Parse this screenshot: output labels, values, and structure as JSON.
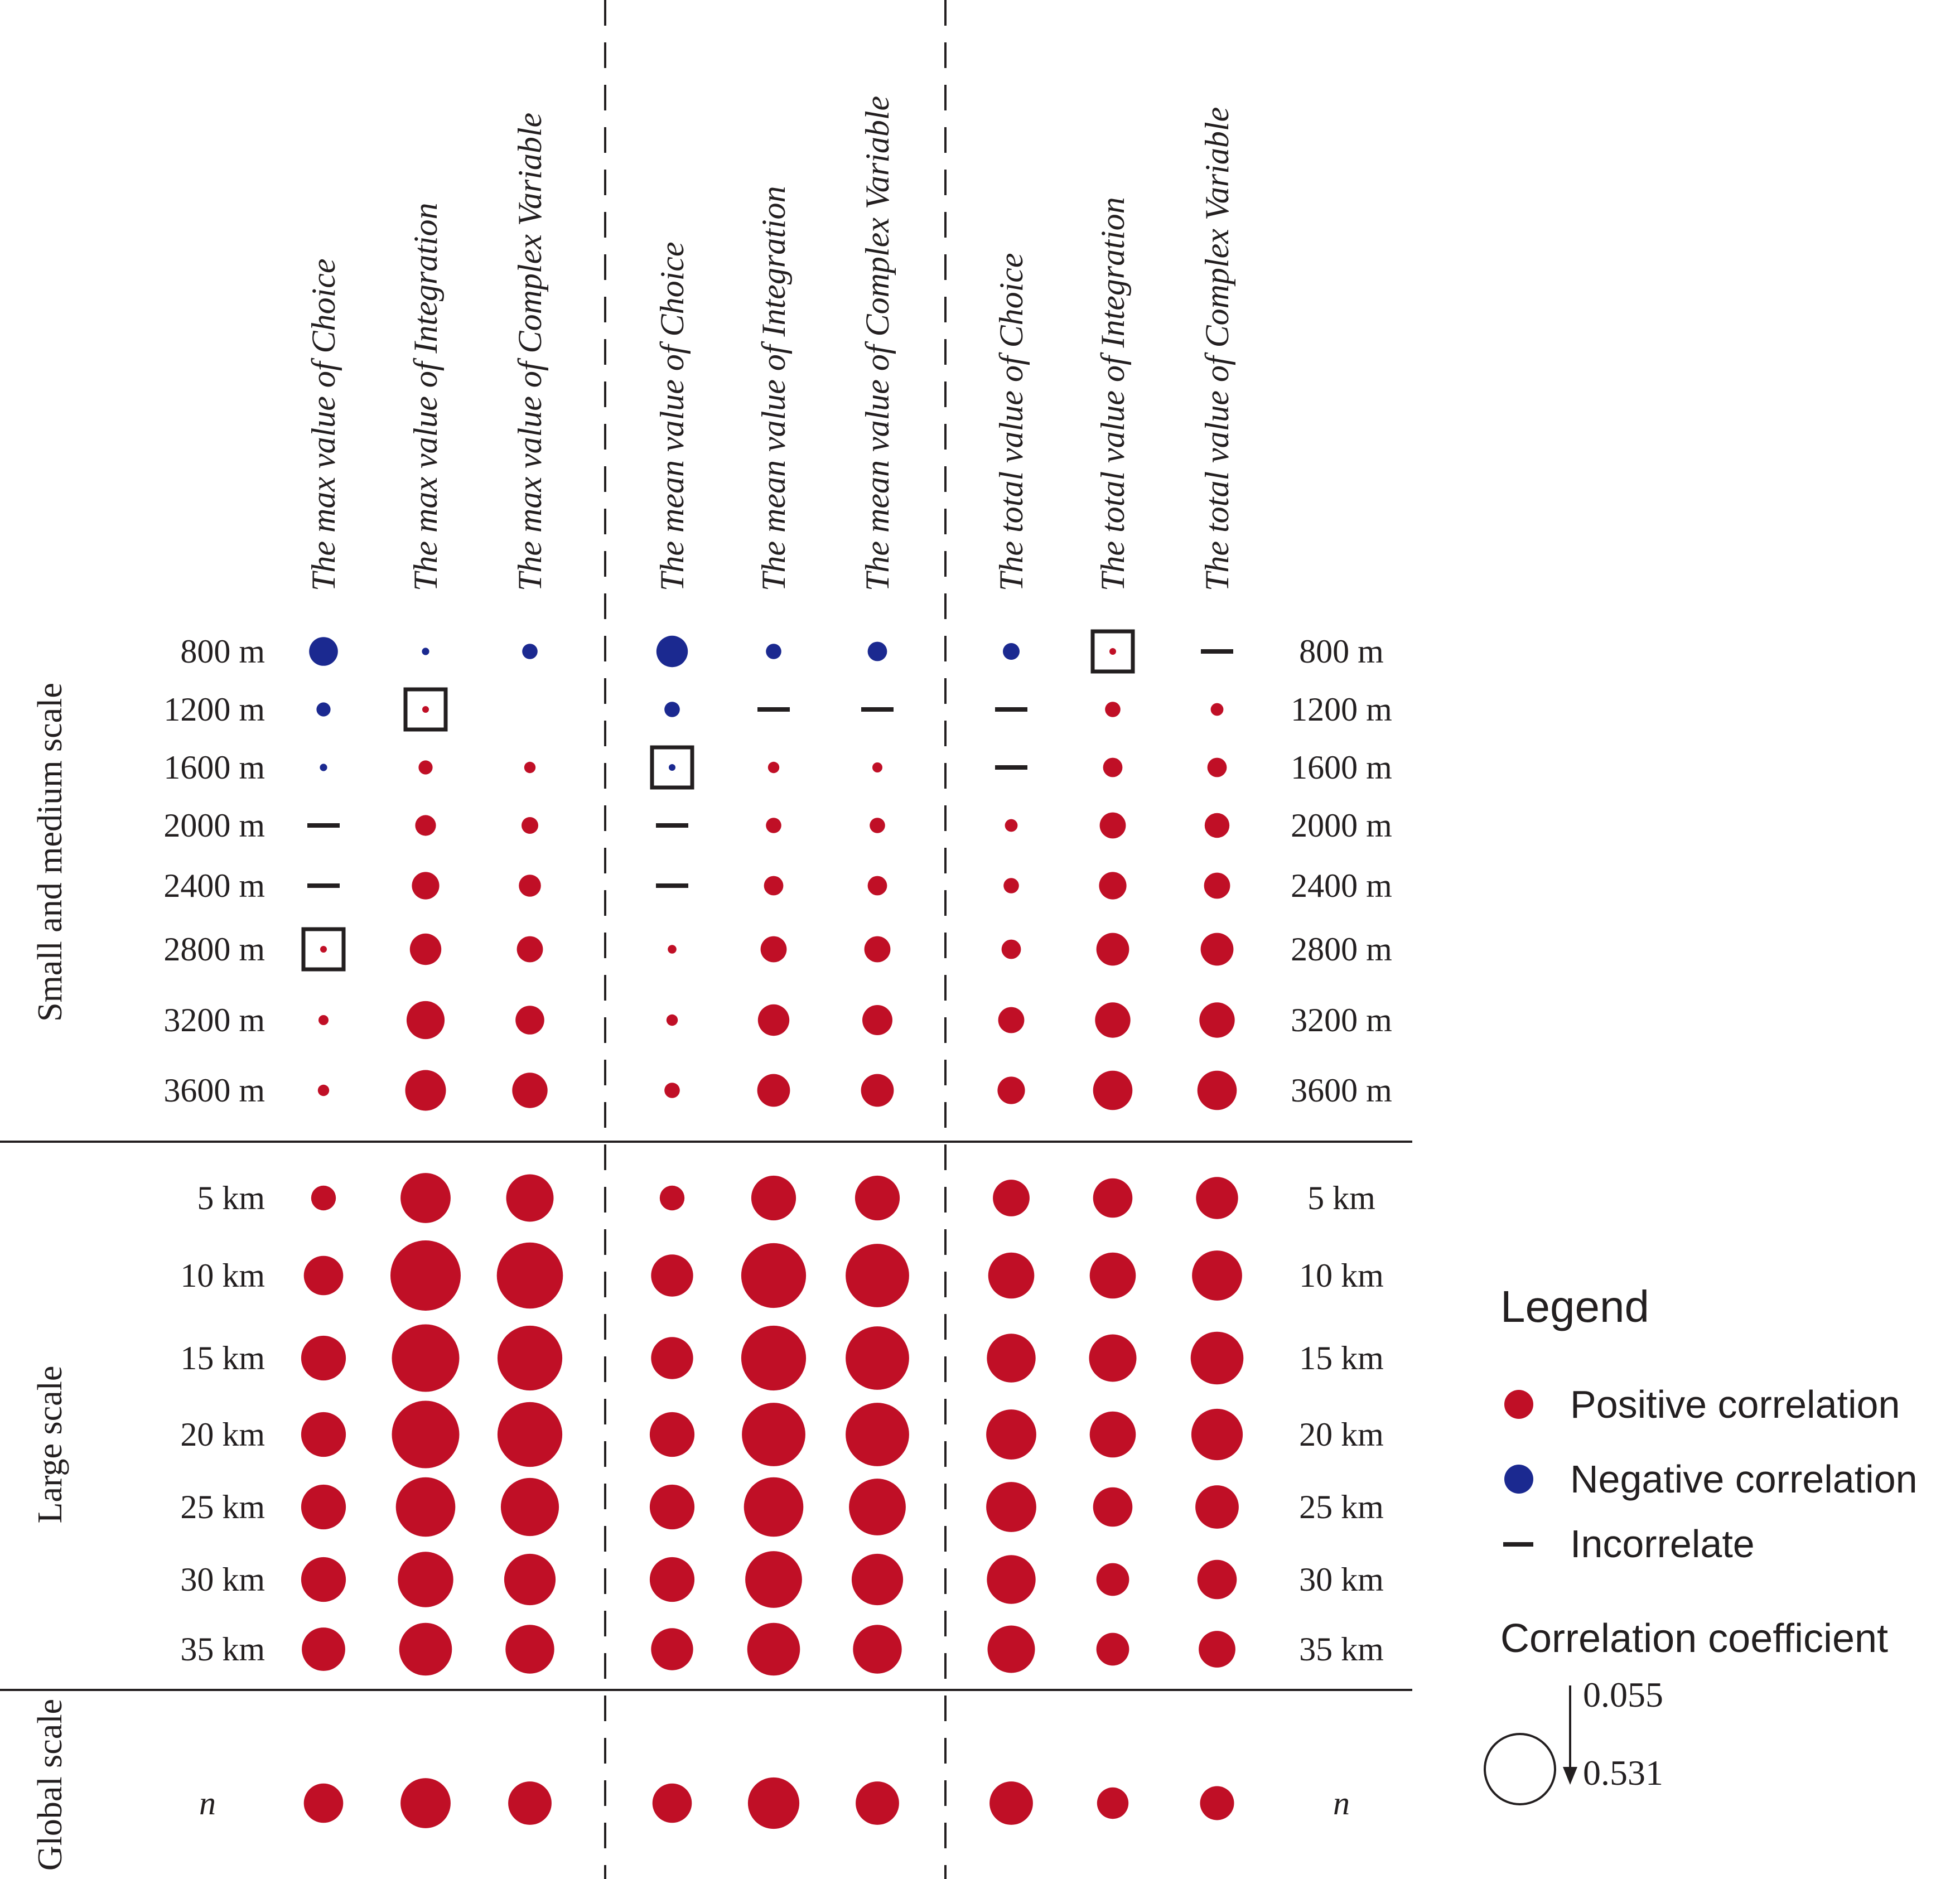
{
  "colors": {
    "positive": "#c00f26",
    "negative": "#1b2990",
    "neutral": "#231f20"
  },
  "chart_data": {
    "type": "bubble-matrix",
    "columns": [
      "The max value of Choice",
      "The max value of Integration",
      "The max value of Complex Variable",
      "The mean value of Choice",
      "The mean value of Integration",
      "The mean value of Complex Variable",
      "The total value of Choice",
      "The total value of Integration",
      "The total value of Complex Variable"
    ],
    "column_groups": [
      [
        "The max value of Choice",
        "The max value of Integration",
        "The max value of Complex Variable"
      ],
      [
        "The mean value of Choice",
        "The mean value of Integration",
        "The mean value of Complex Variable"
      ],
      [
        "The total value of Choice",
        "The total value of Integration",
        "The total value of Complex Variable"
      ]
    ],
    "row_groups": [
      "Small and medium scale",
      "Large scale",
      "Global scale"
    ],
    "rows": [
      {
        "label": "800 m",
        "group": 0,
        "cells": [
          {
            "s": "neg",
            "v": 0.22
          },
          {
            "s": "neg",
            "v": 0.06
          },
          {
            "s": "neg",
            "v": 0.12
          },
          {
            "s": "neg",
            "v": 0.24
          },
          {
            "s": "neg",
            "v": 0.12
          },
          {
            "s": "neg",
            "v": 0.15
          },
          {
            "s": "neg",
            "v": 0.13
          },
          {
            "s": "pos",
            "v": 0.055,
            "boxed": true
          },
          {
            "s": "none"
          }
        ]
      },
      {
        "label": "1200 m",
        "group": 0,
        "cells": [
          {
            "s": "neg",
            "v": 0.11
          },
          {
            "s": "pos",
            "v": 0.055,
            "boxed": true
          },
          {
            "s": "blank"
          },
          {
            "s": "neg",
            "v": 0.12
          },
          {
            "s": "none"
          },
          {
            "s": "none"
          },
          {
            "s": "none"
          },
          {
            "s": "pos",
            "v": 0.12
          },
          {
            "s": "pos",
            "v": 0.1
          }
        ]
      },
      {
        "label": "1600 m",
        "group": 0,
        "cells": [
          {
            "s": "neg",
            "v": 0.06
          },
          {
            "s": "pos",
            "v": 0.11
          },
          {
            "s": "pos",
            "v": 0.09
          },
          {
            "s": "neg",
            "v": 0.055,
            "boxed": true
          },
          {
            "s": "pos",
            "v": 0.09
          },
          {
            "s": "pos",
            "v": 0.08
          },
          {
            "s": "none"
          },
          {
            "s": "pos",
            "v": 0.15
          },
          {
            "s": "pos",
            "v": 0.15
          }
        ]
      },
      {
        "label": "2000 m",
        "group": 0,
        "cells": [
          {
            "s": "none"
          },
          {
            "s": "pos",
            "v": 0.16
          },
          {
            "s": "pos",
            "v": 0.13
          },
          {
            "s": "none"
          },
          {
            "s": "pos",
            "v": 0.12
          },
          {
            "s": "pos",
            "v": 0.12
          },
          {
            "s": "pos",
            "v": 0.1
          },
          {
            "s": "pos",
            "v": 0.2
          },
          {
            "s": "pos",
            "v": 0.19
          }
        ]
      },
      {
        "label": "2400 m",
        "group": 0,
        "cells": [
          {
            "s": "none"
          },
          {
            "s": "pos",
            "v": 0.21
          },
          {
            "s": "pos",
            "v": 0.17
          },
          {
            "s": "none"
          },
          {
            "s": "pos",
            "v": 0.15
          },
          {
            "s": "pos",
            "v": 0.15
          },
          {
            "s": "pos",
            "v": 0.12
          },
          {
            "s": "pos",
            "v": 0.21
          },
          {
            "s": "pos",
            "v": 0.2
          }
        ]
      },
      {
        "label": "2800 m",
        "group": 0,
        "cells": [
          {
            "s": "pos",
            "v": 0.055,
            "boxed": true
          },
          {
            "s": "pos",
            "v": 0.24
          },
          {
            "s": "pos",
            "v": 0.2
          },
          {
            "s": "pos",
            "v": 0.07
          },
          {
            "s": "pos",
            "v": 0.2
          },
          {
            "s": "pos",
            "v": 0.2
          },
          {
            "s": "pos",
            "v": 0.15
          },
          {
            "s": "pos",
            "v": 0.25
          },
          {
            "s": "pos",
            "v": 0.25
          }
        ]
      },
      {
        "label": "3200 m",
        "group": 0,
        "cells": [
          {
            "s": "pos",
            "v": 0.08
          },
          {
            "s": "pos",
            "v": 0.29
          },
          {
            "s": "pos",
            "v": 0.22
          },
          {
            "s": "pos",
            "v": 0.09
          },
          {
            "s": "pos",
            "v": 0.24
          },
          {
            "s": "pos",
            "v": 0.23
          },
          {
            "s": "pos",
            "v": 0.2
          },
          {
            "s": "pos",
            "v": 0.27
          },
          {
            "s": "pos",
            "v": 0.27
          }
        ]
      },
      {
        "label": "3600 m",
        "group": 0,
        "cells": [
          {
            "s": "pos",
            "v": 0.09
          },
          {
            "s": "pos",
            "v": 0.31
          },
          {
            "s": "pos",
            "v": 0.27
          },
          {
            "s": "pos",
            "v": 0.12
          },
          {
            "s": "pos",
            "v": 0.25
          },
          {
            "s": "pos",
            "v": 0.25
          },
          {
            "s": "pos",
            "v": 0.21
          },
          {
            "s": "pos",
            "v": 0.3
          },
          {
            "s": "pos",
            "v": 0.3
          }
        ]
      },
      {
        "label": "5 km",
        "group": 1,
        "cells": [
          {
            "s": "pos",
            "v": 0.19
          },
          {
            "s": "pos",
            "v": 0.38
          },
          {
            "s": "pos",
            "v": 0.36
          },
          {
            "s": "pos",
            "v": 0.19
          },
          {
            "s": "pos",
            "v": 0.34
          },
          {
            "s": "pos",
            "v": 0.34
          },
          {
            "s": "pos",
            "v": 0.28
          },
          {
            "s": "pos",
            "v": 0.3
          },
          {
            "s": "pos",
            "v": 0.32
          }
        ]
      },
      {
        "label": "10 km",
        "group": 1,
        "cells": [
          {
            "s": "pos",
            "v": 0.3
          },
          {
            "s": "pos",
            "v": 0.531
          },
          {
            "s": "pos",
            "v": 0.5
          },
          {
            "s": "pos",
            "v": 0.32
          },
          {
            "s": "pos",
            "v": 0.49
          },
          {
            "s": "pos",
            "v": 0.48
          },
          {
            "s": "pos",
            "v": 0.35
          },
          {
            "s": "pos",
            "v": 0.35
          },
          {
            "s": "pos",
            "v": 0.38
          }
        ]
      },
      {
        "label": "15 km",
        "group": 1,
        "cells": [
          {
            "s": "pos",
            "v": 0.34
          },
          {
            "s": "pos",
            "v": 0.51
          },
          {
            "s": "pos",
            "v": 0.49
          },
          {
            "s": "pos",
            "v": 0.32
          },
          {
            "s": "pos",
            "v": 0.49
          },
          {
            "s": "pos",
            "v": 0.48
          },
          {
            "s": "pos",
            "v": 0.37
          },
          {
            "s": "pos",
            "v": 0.36
          },
          {
            "s": "pos",
            "v": 0.4
          }
        ]
      },
      {
        "label": "20 km",
        "group": 1,
        "cells": [
          {
            "s": "pos",
            "v": 0.34
          },
          {
            "s": "pos",
            "v": 0.51
          },
          {
            "s": "pos",
            "v": 0.49
          },
          {
            "s": "pos",
            "v": 0.34
          },
          {
            "s": "pos",
            "v": 0.48
          },
          {
            "s": "pos",
            "v": 0.48
          },
          {
            "s": "pos",
            "v": 0.38
          },
          {
            "s": "pos",
            "v": 0.35
          },
          {
            "s": "pos",
            "v": 0.39
          }
        ]
      },
      {
        "label": "25 km",
        "group": 1,
        "cells": [
          {
            "s": "pos",
            "v": 0.34
          },
          {
            "s": "pos",
            "v": 0.45
          },
          {
            "s": "pos",
            "v": 0.44
          },
          {
            "s": "pos",
            "v": 0.34
          },
          {
            "s": "pos",
            "v": 0.45
          },
          {
            "s": "pos",
            "v": 0.43
          },
          {
            "s": "pos",
            "v": 0.38
          },
          {
            "s": "pos",
            "v": 0.3
          },
          {
            "s": "pos",
            "v": 0.33
          }
        ]
      },
      {
        "label": "30 km",
        "group": 1,
        "cells": [
          {
            "s": "pos",
            "v": 0.34
          },
          {
            "s": "pos",
            "v": 0.42
          },
          {
            "s": "pos",
            "v": 0.39
          },
          {
            "s": "pos",
            "v": 0.34
          },
          {
            "s": "pos",
            "v": 0.43
          },
          {
            "s": "pos",
            "v": 0.39
          },
          {
            "s": "pos",
            "v": 0.37
          },
          {
            "s": "pos",
            "v": 0.25
          },
          {
            "s": "pos",
            "v": 0.3
          }
        ]
      },
      {
        "label": "35 km",
        "group": 1,
        "cells": [
          {
            "s": "pos",
            "v": 0.33
          },
          {
            "s": "pos",
            "v": 0.4
          },
          {
            "s": "pos",
            "v": 0.37
          },
          {
            "s": "pos",
            "v": 0.32
          },
          {
            "s": "pos",
            "v": 0.4
          },
          {
            "s": "pos",
            "v": 0.37
          },
          {
            "s": "pos",
            "v": 0.36
          },
          {
            "s": "pos",
            "v": 0.25
          },
          {
            "s": "pos",
            "v": 0.28
          }
        ]
      },
      {
        "label": "n",
        "group": 2,
        "cells": [
          {
            "s": "pos",
            "v": 0.3
          },
          {
            "s": "pos",
            "v": 0.38
          },
          {
            "s": "pos",
            "v": 0.33
          },
          {
            "s": "pos",
            "v": 0.3
          },
          {
            "s": "pos",
            "v": 0.39
          },
          {
            "s": "pos",
            "v": 0.33
          },
          {
            "s": "pos",
            "v": 0.33
          },
          {
            "s": "pos",
            "v": 0.24
          },
          {
            "s": "pos",
            "v": 0.26
          }
        ]
      }
    ],
    "legend": {
      "title": "Legend",
      "positive": "Positive correlation",
      "negative": "Negative correlation",
      "none": "Incorrelate",
      "size_title": "Correlation coefficient",
      "min": "0.055",
      "max": "0.531"
    }
  }
}
